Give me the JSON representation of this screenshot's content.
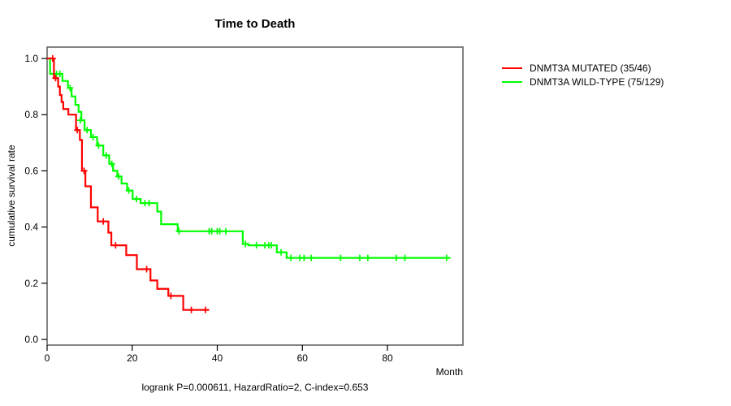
{
  "header": {
    "title": "Time to Death"
  },
  "axes": {
    "x_title": "Month",
    "y_title": "cumulative survival rate"
  },
  "footer": {
    "subtitle": "logrank P=0.000611, HazardRatio=2, C-index=0.653"
  },
  "legend": {
    "items": [
      {
        "label": "DNMT3A MUTATED (35/46)",
        "color": "#ff0000"
      },
      {
        "label": "DNMT3A WILD-TYPE (75/129)",
        "color": "#00ff00"
      }
    ]
  },
  "chart_data": {
    "type": "line",
    "subtype": "kaplan-meier-step",
    "title": "Time to Death",
    "xlabel": "Month",
    "ylabel": "cumulative survival rate",
    "annotation": "logrank P=0.000611, HazardRatio=2, C-index=0.653",
    "xlim": [
      0,
      98
    ],
    "ylim": [
      0.0,
      1.0
    ],
    "x_ticks": [
      0,
      20,
      40,
      60,
      80
    ],
    "y_ticks": [
      0.0,
      0.2,
      0.4,
      0.6,
      0.8,
      1.0
    ],
    "grid": false,
    "legend_position": "right-outside",
    "frame_color": "#666666",
    "series": [
      {
        "name": "DNMT3A MUTATED (35/46)",
        "color": "#ff0000",
        "end_x": 38.1,
        "steps": [
          [
            0,
            1.0
          ],
          [
            1.6,
            0.93
          ],
          [
            2.6,
            0.9
          ],
          [
            3.0,
            0.87
          ],
          [
            3.4,
            0.845
          ],
          [
            3.8,
            0.82
          ],
          [
            5.0,
            0.8
          ],
          [
            6.8,
            0.745
          ],
          [
            7.7,
            0.71
          ],
          [
            8.2,
            0.6
          ],
          [
            9.0,
            0.545
          ],
          [
            10.3,
            0.47
          ],
          [
            11.9,
            0.42
          ],
          [
            14.4,
            0.38
          ],
          [
            15.1,
            0.335
          ],
          [
            18.6,
            0.3
          ],
          [
            21.1,
            0.25
          ],
          [
            24.3,
            0.21
          ],
          [
            25.9,
            0.18
          ],
          [
            28.5,
            0.155
          ],
          [
            32.0,
            0.105
          ]
        ],
        "censors": [
          [
            1.3,
            1.0
          ],
          [
            2.0,
            0.93
          ],
          [
            7.1,
            0.745
          ],
          [
            8.7,
            0.6
          ],
          [
            13.2,
            0.42
          ],
          [
            16.1,
            0.335
          ],
          [
            23.4,
            0.25
          ],
          [
            29.1,
            0.155
          ],
          [
            33.9,
            0.105
          ],
          [
            37.2,
            0.105
          ]
        ]
      },
      {
        "name": "DNMT3A WILD-TYPE (75/129)",
        "color": "#00ff00",
        "end_x": 94.8,
        "steps": [
          [
            0,
            1.0
          ],
          [
            0.7,
            0.945
          ],
          [
            3.6,
            0.92
          ],
          [
            4.9,
            0.895
          ],
          [
            5.75,
            0.865
          ],
          [
            6.65,
            0.835
          ],
          [
            7.4,
            0.81
          ],
          [
            8.05,
            0.78
          ],
          [
            8.8,
            0.745
          ],
          [
            10.3,
            0.72
          ],
          [
            11.75,
            0.69
          ],
          [
            13.2,
            0.655
          ],
          [
            14.6,
            0.625
          ],
          [
            15.5,
            0.6
          ],
          [
            16.5,
            0.58
          ],
          [
            17.5,
            0.555
          ],
          [
            18.8,
            0.53
          ],
          [
            20.1,
            0.5
          ],
          [
            22.0,
            0.485
          ],
          [
            25.9,
            0.455
          ],
          [
            26.8,
            0.41
          ],
          [
            30.7,
            0.385
          ],
          [
            46.0,
            0.34
          ],
          [
            47.3,
            0.335
          ],
          [
            54.0,
            0.31
          ],
          [
            56.3,
            0.29
          ]
        ],
        "censors": [
          [
            2.2,
            0.945
          ],
          [
            3.0,
            0.945
          ],
          [
            5.4,
            0.895
          ],
          [
            7.8,
            0.78
          ],
          [
            9.4,
            0.745
          ],
          [
            10.8,
            0.72
          ],
          [
            12.1,
            0.69
          ],
          [
            13.9,
            0.655
          ],
          [
            15.2,
            0.625
          ],
          [
            16.8,
            0.58
          ],
          [
            19.2,
            0.53
          ],
          [
            21.0,
            0.5
          ],
          [
            23.0,
            0.485
          ],
          [
            24.0,
            0.485
          ],
          [
            31.0,
            0.385
          ],
          [
            38.1,
            0.385
          ],
          [
            38.7,
            0.385
          ],
          [
            40.0,
            0.385
          ],
          [
            40.6,
            0.385
          ],
          [
            42.0,
            0.385
          ],
          [
            46.6,
            0.34
          ],
          [
            49.2,
            0.335
          ],
          [
            51.2,
            0.335
          ],
          [
            52.1,
            0.335
          ],
          [
            52.7,
            0.335
          ],
          [
            55.0,
            0.31
          ],
          [
            57.3,
            0.29
          ],
          [
            59.4,
            0.29
          ],
          [
            60.4,
            0.29
          ],
          [
            62.1,
            0.29
          ],
          [
            69.0,
            0.29
          ],
          [
            73.5,
            0.29
          ],
          [
            75.4,
            0.29
          ],
          [
            82.1,
            0.29
          ],
          [
            84.1,
            0.29
          ],
          [
            93.9,
            0.29
          ]
        ]
      }
    ]
  }
}
